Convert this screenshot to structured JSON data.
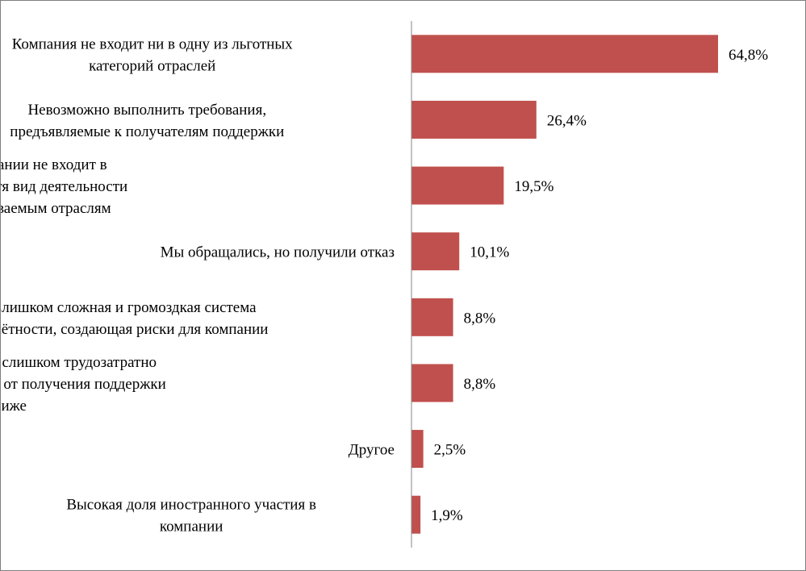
{
  "chart_data": {
    "type": "bar",
    "orientation": "horizontal",
    "title": "",
    "xlabel": "",
    "ylabel": "",
    "xlim": [
      0,
      70
    ],
    "grid": false,
    "legend": "none",
    "bar_color": "#c0504d",
    "categories": [
      [
        "Компания не входит ни в одну из льготных",
        "категорий отраслей"
      ],
      [
        "Невозможно выполнить требования,",
        "предъявляемые к получателям поддержки"
      ],
      [
        "Основной ОКВЭД компании не входит в",
        "утвержденные перечни, хотя вид деятельности",
        "соответствует поддерживаемым отраслям"
      ],
      [
        "Мы обращались, но получили отказ"
      ],
      [
        "Слишком сложная и громоздкая система",
        "отчётности,  создающая риски для компании"
      ],
      [
        "Администрирование слишком трудозатратно",
        "для компании, выгоды от получения поддержки",
        "ниже"
      ],
      [
        "Другое"
      ],
      [
        "Высокая доля иностранного участия в",
        "компании"
      ]
    ],
    "values": [
      64.8,
      26.4,
      19.5,
      10.1,
      8.8,
      8.8,
      2.5,
      1.9
    ],
    "value_labels": [
      "64,8%",
      "26,4%",
      "19,5%",
      "10,1%",
      "8,8%",
      "8,8%",
      "2,5%",
      "1,9%"
    ]
  }
}
